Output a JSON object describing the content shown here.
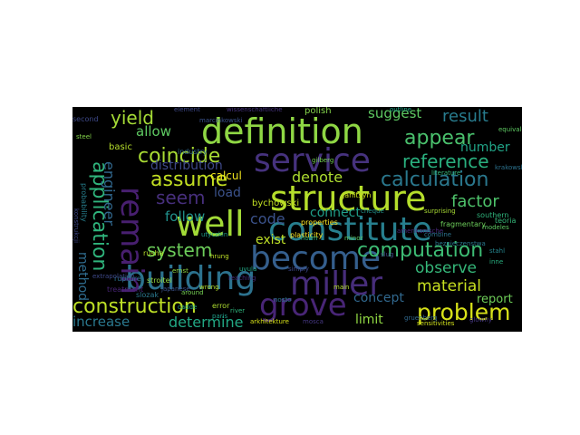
{
  "wordcloud": {
    "background": "#000000",
    "words": [
      {
        "text": "definition",
        "color": "#8fd744"
      },
      {
        "text": "structure",
        "color": "#b5de2b"
      },
      {
        "text": "service",
        "color": "#46327e"
      },
      {
        "text": "constitute",
        "color": "#277f8e"
      },
      {
        "text": "building",
        "color": "#2c728e"
      },
      {
        "text": "miller",
        "color": "#472d7b"
      },
      {
        "text": "become",
        "color": "#355f8d"
      },
      {
        "text": "well",
        "color": "#a2da37"
      },
      {
        "text": "remain",
        "color": "#481f70"
      },
      {
        "text": "grove",
        "color": "#482576"
      },
      {
        "text": "application",
        "color": "#2fb47c"
      },
      {
        "text": "computation",
        "color": "#3dbc74"
      },
      {
        "text": "problem",
        "color": "#d8e219"
      },
      {
        "text": "construction",
        "color": "#bddf26"
      },
      {
        "text": "calculation",
        "color": "#2a788e"
      },
      {
        "text": "coincide",
        "color": "#a8db34"
      },
      {
        "text": "assume",
        "color": "#c2df23"
      },
      {
        "text": "appear",
        "color": "#4ac16d"
      },
      {
        "text": "reference",
        "color": "#2ab07f"
      },
      {
        "text": "seem",
        "color": "#472f7d"
      },
      {
        "text": "yield",
        "color": "#a5db36"
      },
      {
        "text": "system",
        "color": "#6ccd5a"
      },
      {
        "text": "observe",
        "color": "#35b779"
      },
      {
        "text": "material",
        "color": "#c8e020"
      },
      {
        "text": "result",
        "color": "#287c8e"
      },
      {
        "text": "factor",
        "color": "#4ec36b"
      },
      {
        "text": "determine",
        "color": "#22a884"
      },
      {
        "text": "increase",
        "color": "#2a788e"
      },
      {
        "text": "code",
        "color": "#3b528b"
      },
      {
        "text": "engineer",
        "color": "#31688e"
      },
      {
        "text": "method",
        "color": "#2f6c8e"
      },
      {
        "text": "distribution",
        "color": "#3e4989"
      },
      {
        "text": "denote",
        "color": "#addc30"
      },
      {
        "text": "suggest",
        "color": "#5ec962"
      },
      {
        "text": "allow",
        "color": "#5ec962"
      },
      {
        "text": "connect",
        "color": "#1f9e89"
      },
      {
        "text": "follow",
        "color": "#21918c"
      },
      {
        "text": "concept",
        "color": "#31688e"
      },
      {
        "text": "limit",
        "color": "#90d743"
      },
      {
        "text": "load",
        "color": "#3b528b"
      },
      {
        "text": "exist",
        "color": "#bddf26"
      },
      {
        "text": "number",
        "color": "#20a386"
      },
      {
        "text": "report",
        "color": "#6ece58"
      },
      {
        "text": "calcul",
        "color": "#f1e51d"
      },
      {
        "text": "bychowski",
        "color": "#c2df23"
      },
      {
        "text": "arkhitekture",
        "color": "#d8e219"
      },
      {
        "text": "janitsyn",
        "color": "#d0e11c"
      },
      {
        "text": "polish",
        "color": "#84d44b"
      },
      {
        "text": "industry",
        "color": "#31688e"
      },
      {
        "text": "properties",
        "color": "#fde725"
      },
      {
        "text": "plasticity",
        "color": "#fde725"
      },
      {
        "text": "stroitel",
        "color": "#95d840"
      },
      {
        "text": "basic",
        "color": "#b5de2b"
      },
      {
        "text": "rupture",
        "color": "#2c728e"
      },
      {
        "text": "journal",
        "color": "#22a884"
      },
      {
        "text": "sensitivities",
        "color": "#d0e11c"
      },
      {
        "text": "reliability",
        "color": "#6ccd5a"
      },
      {
        "text": "literature",
        "color": "#35b779"
      },
      {
        "text": "second",
        "color": "#3e4989"
      },
      {
        "text": "japanese",
        "color": "#3b528b"
      },
      {
        "text": "steel",
        "color": "#84d44b"
      },
      {
        "text": "probability",
        "color": "#277f8e"
      },
      {
        "text": "konstrukcji",
        "color": "#3e4989"
      },
      {
        "text": "around",
        "color": "#75d054"
      },
      {
        "text": "slozak",
        "color": "#2a788e"
      },
      {
        "text": "error",
        "color": "#addc30"
      },
      {
        "text": "marcinkowski",
        "color": "#3b528b"
      },
      {
        "text": "cadde",
        "color": "#20a386"
      },
      {
        "text": "river",
        "color": "#2fb47c"
      },
      {
        "text": "rusha",
        "color": "#b5de2b"
      },
      {
        "text": "treatment",
        "color": "#482576"
      },
      {
        "text": "teoria",
        "color": "#35b779"
      },
      {
        "text": "nosto",
        "color": "#2a788e"
      },
      {
        "text": "modeles",
        "color": "#5ec962"
      },
      {
        "text": "fragmentary",
        "color": "#6ccd5a"
      },
      {
        "text": "southern",
        "color": "#2fb47c"
      },
      {
        "text": "paris",
        "color": "#1f9e89"
      },
      {
        "text": "hrung",
        "color": "#bddf26"
      },
      {
        "text": "extrapolation",
        "color": "#3e4989"
      },
      {
        "text": "equivalent",
        "color": "#5ec962"
      },
      {
        "text": "reaching",
        "color": "#472d7b"
      },
      {
        "text": "amerikanische",
        "color": "#482576"
      },
      {
        "text": "wissenschaftliche",
        "color": "#46327e"
      },
      {
        "text": "mosca",
        "color": "#453781"
      },
      {
        "text": "element",
        "color": "#3e4989"
      },
      {
        "text": "combine",
        "color": "#2c728e"
      },
      {
        "text": "bezpieczenstwa",
        "color": "#2a788e"
      },
      {
        "text": "surprising",
        "color": "#a8db34"
      },
      {
        "text": "gruenberg",
        "color": "#31688e"
      },
      {
        "text": "stahl",
        "color": "#25858e"
      },
      {
        "text": "inne",
        "color": "#29af7f"
      },
      {
        "text": "norm",
        "color": "#2ab07f"
      },
      {
        "text": "slug",
        "color": "#3e4989"
      },
      {
        "text": "main",
        "color": "#b5de2b"
      },
      {
        "text": "outline",
        "color": "#20a386"
      },
      {
        "text": "gilberg",
        "color": "#75d054"
      },
      {
        "text": "wrong",
        "color": "#b5de2b"
      },
      {
        "text": "ernst",
        "color": "#90d743"
      },
      {
        "text": "cheque",
        "color": "#21918c"
      },
      {
        "text": "simply",
        "color": "#3e4989"
      },
      {
        "text": "uvula",
        "color": "#22a884"
      },
      {
        "text": "krakowski",
        "color": "#2c728e"
      },
      {
        "text": "utyczkin",
        "color": "#1f9e89"
      },
      {
        "text": "minor",
        "color": "#5ec962"
      },
      {
        "text": "glowny",
        "color": "#453781"
      },
      {
        "text": "rules",
        "color": "#3e4989"
      }
    ]
  }
}
